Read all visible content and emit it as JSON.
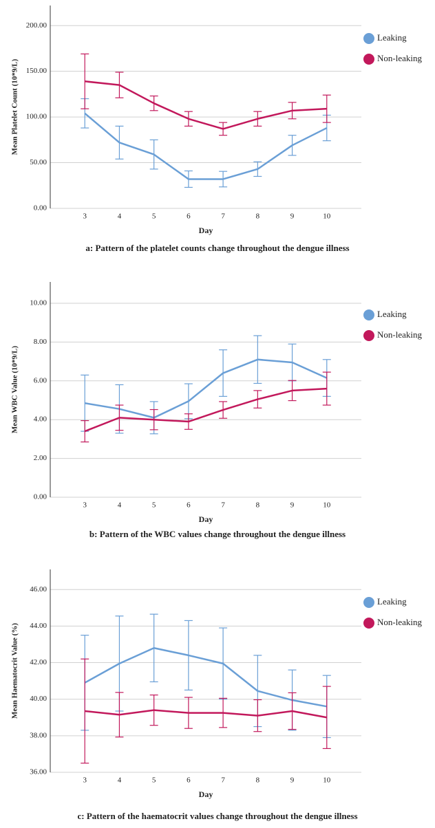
{
  "chart_data": [
    {
      "type": "line",
      "caption": "a: Pattern of the platelet counts change throughout the dengue illness",
      "x_label": "Day",
      "y_label": "Mean Platelet Count (10*9/L)",
      "categories": [
        "3",
        "4",
        "5",
        "6",
        "7",
        "8",
        "9",
        "10"
      ],
      "ylim": [
        0,
        222
      ],
      "yticks": [
        {
          "value": 0,
          "label": "0.00"
        },
        {
          "value": 50,
          "label": "50.00"
        },
        {
          "value": 100,
          "label": "100.00"
        },
        {
          "value": 150,
          "label": "150.00"
        },
        {
          "value": 200,
          "label": "200.00"
        }
      ],
      "grid": true,
      "series": [
        {
          "name": "Leaking",
          "color": "#6a9fd6",
          "values": [
            104,
            72,
            59,
            32,
            32,
            43,
            69,
            88
          ],
          "errors": [
            16,
            18,
            16,
            9,
            8.5,
            8,
            11,
            14
          ]
        },
        {
          "name": "Non-leaking",
          "color": "#c2185b",
          "values": [
            139,
            135,
            115,
            98,
            87,
            98,
            107,
            109
          ],
          "errors": [
            30,
            14,
            8,
            8,
            7,
            8,
            9,
            15
          ]
        }
      ]
    },
    {
      "type": "line",
      "caption": "b: Pattern of the WBC values change throughout the dengue illness",
      "x_label": "Day",
      "y_label": "Mean WBC Value (10*9/L)",
      "categories": [
        "3",
        "4",
        "5",
        "6",
        "7",
        "8",
        "9",
        "10"
      ],
      "ylim": [
        0,
        11.1
      ],
      "yticks": [
        {
          "value": 0,
          "label": "0.00"
        },
        {
          "value": 2,
          "label": "2.00"
        },
        {
          "value": 4,
          "label": "4.00"
        },
        {
          "value": 6,
          "label": "6.00"
        },
        {
          "value": 8,
          "label": "8.00"
        },
        {
          "value": 10,
          "label": "10.00"
        }
      ],
      "grid": true,
      "series": [
        {
          "name": "Leaking",
          "color": "#6a9fd6",
          "values": [
            4.85,
            4.55,
            4.1,
            4.95,
            6.4,
            7.1,
            6.95,
            6.15
          ],
          "errors": [
            1.45,
            1.25,
            0.83,
            0.9,
            1.2,
            1.23,
            0.95,
            0.95
          ]
        },
        {
          "name": "Non-leaking",
          "color": "#c2185b",
          "values": [
            3.4,
            4.1,
            4.0,
            3.9,
            4.5,
            5.05,
            5.5,
            5.6
          ],
          "errors": [
            0.55,
            0.65,
            0.52,
            0.4,
            0.43,
            0.45,
            0.52,
            0.85
          ]
        }
      ]
    },
    {
      "type": "line",
      "caption": "c: Pattern of the haematocrit values change throughout the dengue illness",
      "x_label": "Day",
      "y_label": "Mean Haematocrit Value (%)",
      "categories": [
        "3",
        "4",
        "5",
        "6",
        "7",
        "8",
        "9",
        "10"
      ],
      "ylim": [
        36,
        47.1
      ],
      "yticks": [
        {
          "value": 36,
          "label": "36.00"
        },
        {
          "value": 38,
          "label": "38.00"
        },
        {
          "value": 40,
          "label": "40.00"
        },
        {
          "value": 42,
          "label": "42.00"
        },
        {
          "value": 44,
          "label": "44.00"
        },
        {
          "value": 46,
          "label": "46.00"
        }
      ],
      "grid": true,
      "series": [
        {
          "name": "Leaking",
          "color": "#6a9fd6",
          "values": [
            40.9,
            41.95,
            42.8,
            42.4,
            41.95,
            40.45,
            39.95,
            39.6
          ],
          "errors": [
            2.6,
            2.6,
            1.85,
            1.9,
            1.95,
            1.95,
            1.65,
            1.7
          ]
        },
        {
          "name": "Non-leaking",
          "color": "#c2185b",
          "values": [
            39.35,
            39.15,
            39.4,
            39.25,
            39.25,
            39.1,
            39.35,
            39.0
          ],
          "errors": [
            2.85,
            1.22,
            0.83,
            0.85,
            0.8,
            0.87,
            1.0,
            1.7
          ]
        }
      ]
    }
  ]
}
